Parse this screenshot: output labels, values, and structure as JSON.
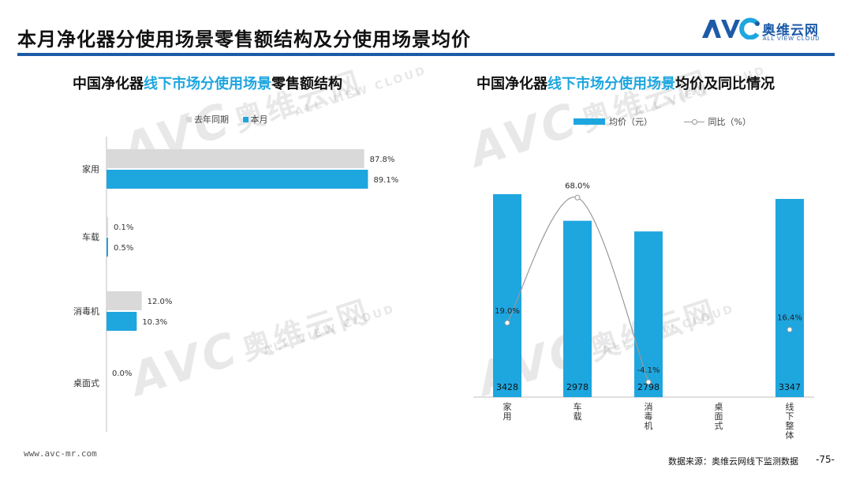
{
  "header": {
    "title": "本月净化器分使用场景零售额结构及分使用场景均价",
    "logo": {
      "avc": "AVC",
      "cn": "奥维云网",
      "en": "ALL VIEW CLOUD"
    }
  },
  "left_chart": {
    "title_pre": "中国净化器",
    "title_hl": "线下市场分使用场景",
    "title_post": "零售额结构",
    "legend": [
      "去年同期",
      "本月"
    ]
  },
  "right_chart": {
    "title_pre": "中国净化器",
    "title_hl": "线下市场分使用场景",
    "title_post": "均价及同比情况",
    "legend": [
      "均价（元）",
      "同比（%）"
    ]
  },
  "watermark": {
    "avc": "AVC",
    "cn": "奥维云网",
    "en": "ALL VIEW CLOUD"
  },
  "colors": {
    "accent": "#1ea6df",
    "last_year": "#d9d9d9",
    "header_rule": "#1d5aa8",
    "line": "#999999"
  },
  "footer": {
    "url": "www.avc-mr.com",
    "source": "数据来源：奥维云网线下监测数据",
    "page": "-75-"
  },
  "chart_data": [
    {
      "type": "bar",
      "orientation": "horizontal",
      "categories": [
        "家用",
        "车载",
        "消毒机",
        "桌面式"
      ],
      "series": [
        {
          "name": "去年同期",
          "values": [
            87.8,
            0.1,
            12.0,
            0.0
          ],
          "labels": [
            "87.8%",
            "0.1%",
            "12.0%",
            "0.0%"
          ]
        },
        {
          "name": "本月",
          "values": [
            89.1,
            0.5,
            10.3,
            null
          ],
          "labels": [
            "89.1%",
            "0.5%",
            "10.3%",
            ""
          ]
        }
      ],
      "unit": "%",
      "xlim": [
        0,
        100
      ],
      "grid": false,
      "legend_position": "top"
    },
    {
      "type": "bar",
      "categories": [
        "家用",
        "车载",
        "消毒机",
        "桌面式",
        "线下整体"
      ],
      "series": [
        {
          "name": "均价（元）",
          "type": "bar",
          "values": [
            3428,
            2978,
            2798,
            null,
            3347
          ],
          "labels": [
            "3428",
            "2978",
            "2798",
            "",
            "3347"
          ]
        },
        {
          "name": "同比（%）",
          "type": "line",
          "values": [
            19.0,
            68.0,
            -4.1,
            null,
            16.4
          ],
          "labels": [
            "19.0%",
            "68.0%",
            "-4.1%",
            "",
            "16.4%"
          ]
        }
      ],
      "ylim_bar": [
        0,
        4000
      ],
      "ylim_line": [
        -10,
        90
      ],
      "grid": false,
      "legend_position": "top"
    }
  ]
}
